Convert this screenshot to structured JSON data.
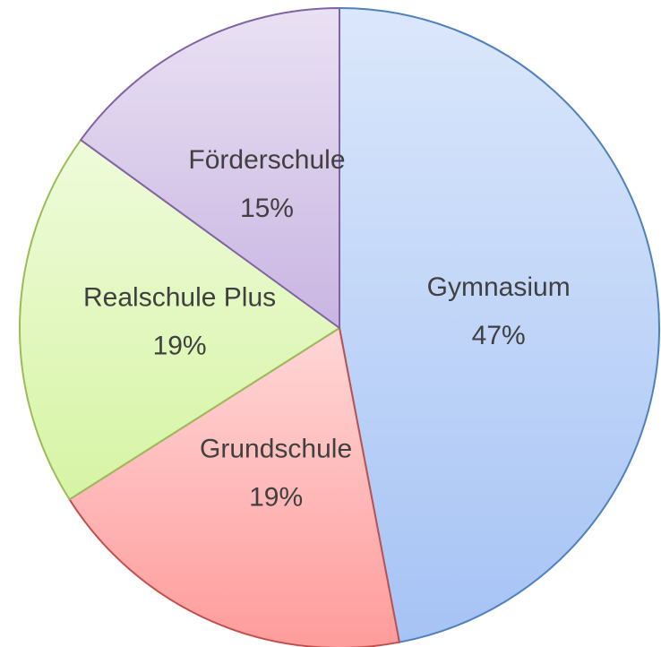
{
  "chart_data": {
    "type": "pie",
    "categories": [
      "Gymnasium",
      "Grundschule",
      "Realschule Plus",
      "Förderschule"
    ],
    "values": [
      47,
      19,
      19,
      15
    ],
    "value_labels": [
      "47%",
      "19%",
      "19%",
      "15%"
    ],
    "colors": [
      "#a6c3f5",
      "#ff9b9b",
      "#d6f4a4",
      "#c9b5e2"
    ],
    "edge_colors": [
      "#4f81bd",
      "#c0504d",
      "#9bbb59",
      "#8064a2"
    ]
  }
}
